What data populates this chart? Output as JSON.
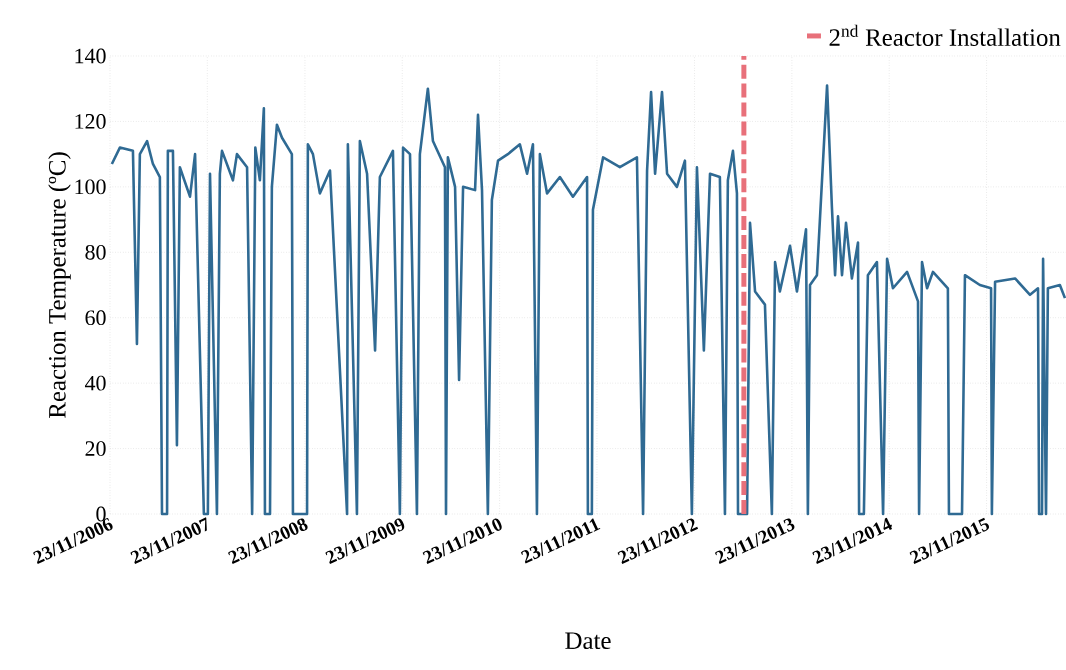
{
  "chart_data": {
    "type": "line",
    "xlabel": "Date",
    "ylabel": "Reaction Temperature (ºC)",
    "color": "#2f6a93",
    "marker": "none",
    "line_style": "solid",
    "grid": true,
    "legend": "top right",
    "xlim": [
      "2006-11-23",
      "2016-09-16"
    ],
    "ylim": [
      0,
      140
    ],
    "yticks": [
      0,
      20,
      40,
      60,
      80,
      100,
      120,
      140
    ],
    "xticks": [
      {
        "value": "2006-11-23",
        "label": "23/11/2006"
      },
      {
        "value": "2007-11-23",
        "label": "23/11/2007"
      },
      {
        "value": "2008-11-23",
        "label": "23/11/2008"
      },
      {
        "value": "2009-11-23",
        "label": "23/11/2009"
      },
      {
        "value": "2010-11-23",
        "label": "23/11/2010"
      },
      {
        "value": "2011-11-23",
        "label": "23/11/2011"
      },
      {
        "value": "2012-11-23",
        "label": "23/11/2012"
      },
      {
        "value": "2013-11-23",
        "label": "23/11/2013"
      },
      {
        "value": "2014-11-23",
        "label": "23/11/2014"
      },
      {
        "value": "2015-11-23",
        "label": "23/11/2015"
      }
    ],
    "ref_lines": [
      {
        "axis": "x",
        "value": "2013-05-27",
        "label": "2$^{nd}$ Reactor Installation",
        "color": "#e8707a",
        "line_style": "dashed"
      }
    ],
    "x": [
      "2006-11-30",
      "2006-12-30",
      "2007-02-17",
      "2007-03-04",
      "2007-03-15",
      "2007-04-11",
      "2007-05-03",
      "2007-05-29",
      "2007-06-06",
      "2007-06-25",
      "2007-06-28",
      "2007-07-17",
      "2007-08-01",
      "2007-08-12",
      "2007-09-19",
      "2007-10-08",
      "2007-11-10",
      "2007-11-25",
      "2007-12-03",
      "2007-12-29",
      "2008-01-09",
      "2008-01-17",
      "2008-02-27",
      "2008-03-13",
      "2008-04-20",
      "2008-05-09",
      "2008-05-21",
      "2008-06-07",
      "2008-06-22",
      "2008-06-26",
      "2008-07-15",
      "2008-07-22",
      "2008-08-10",
      "2008-08-29",
      "2008-10-05",
      "2008-10-09",
      "2008-12-01",
      "2008-12-04",
      "2008-12-23",
      "2009-01-18",
      "2009-02-25",
      "2009-04-30",
      "2009-05-03",
      "2009-06-06",
      "2009-06-17",
      "2009-07-14",
      "2009-08-13",
      "2009-08-31",
      "2009-10-19",
      "2009-11-14",
      "2009-11-26",
      "2009-12-22",
      "2010-01-17",
      "2010-01-28",
      "2010-02-27",
      "2010-03-18",
      "2010-05-02",
      "2010-05-06",
      "2010-05-13",
      "2010-06-09",
      "2010-06-24",
      "2010-07-09",
      "2010-08-23",
      "2010-09-03",
      "2010-09-18",
      "2010-10-10",
      "2010-10-25",
      "2010-11-17",
      "2010-12-24",
      "2011-02-07",
      "2011-03-06",
      "2011-03-28",
      "2011-04-12",
      "2011-04-23",
      "2011-05-20",
      "2011-07-07",
      "2011-08-25",
      "2011-10-17",
      "2011-10-20",
      "2011-11-04",
      "2011-11-08",
      "2011-12-16",
      "2012-02-17",
      "2012-04-21",
      "2012-05-14",
      "2012-05-29",
      "2012-06-13",
      "2012-06-28",
      "2012-07-24",
      "2012-08-12",
      "2012-09-18",
      "2012-10-18",
      "2012-11-13",
      "2012-12-02",
      "2012-12-28",
      "2013-01-20",
      "2013-02-26",
      "2013-03-17",
      "2013-03-28",
      "2013-04-16",
      "2013-05-01",
      "2013-05-05",
      "2013-06-08",
      "2013-06-19",
      "2013-07-08",
      "2013-08-14",
      "2013-09-09",
      "2013-09-21",
      "2013-10-09",
      "2013-11-16",
      "2013-12-12",
      "2014-01-15",
      "2014-01-22",
      "2014-01-30",
      "2014-02-25",
      "2014-04-04",
      "2014-04-22",
      "2014-05-04",
      "2014-05-15",
      "2014-05-30",
      "2014-06-14",
      "2014-07-06",
      "2014-07-29",
      "2014-08-02",
      "2014-08-20",
      "2014-09-04",
      "2014-10-08",
      "2014-10-31",
      "2014-11-15",
      "2014-12-07",
      "2015-01-29",
      "2015-03-11",
      "2015-03-15",
      "2015-03-26",
      "2015-04-14",
      "2015-05-06",
      "2015-07-01",
      "2015-07-05",
      "2015-08-23",
      "2015-09-03",
      "2015-10-29",
      "2015-12-10",
      "2015-12-13",
      "2015-12-25",
      "2016-03-09",
      "2016-05-04",
      "2016-06-03",
      "2016-06-07",
      "2016-06-18",
      "2016-06-22",
      "2016-07-03",
      "2016-07-10",
      "2016-08-24",
      "2016-09-12"
    ],
    "values": [
      107,
      112,
      111,
      52,
      110,
      114,
      107,
      103,
      0,
      0,
      111,
      111,
      21,
      106,
      97,
      110,
      0,
      0,
      104,
      0,
      104,
      111,
      102,
      110,
      106,
      0,
      112,
      102,
      124,
      0,
      0,
      100,
      119,
      115,
      110,
      0,
      0,
      113,
      110,
      98,
      105,
      0,
      113,
      0,
      114,
      104,
      50,
      103,
      111,
      0,
      112,
      110,
      0,
      110,
      130,
      114,
      106,
      0,
      109,
      100,
      41,
      100,
      99,
      122,
      99,
      0,
      96,
      108,
      110,
      113,
      104,
      113,
      0,
      110,
      98,
      103,
      97,
      103,
      0,
      0,
      93,
      109,
      106,
      109,
      0,
      105,
      129,
      104,
      129,
      104,
      100,
      108,
      0,
      106,
      50,
      104,
      103,
      0,
      102,
      111,
      98,
      0,
      0,
      89,
      68,
      64,
      0,
      77,
      68,
      82,
      68,
      87,
      0,
      70,
      73,
      131,
      94,
      73,
      91,
      73,
      89,
      72,
      83,
      0,
      0,
      73,
      77,
      0,
      78,
      69,
      74,
      65,
      0,
      77,
      69,
      74,
      69,
      0,
      0,
      73,
      70,
      69,
      0,
      71,
      72,
      67,
      69,
      0,
      0,
      78,
      0,
      69,
      70,
      66
    ]
  }
}
